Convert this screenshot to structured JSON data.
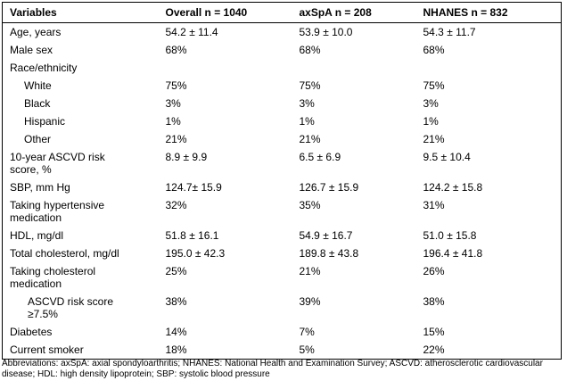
{
  "table": {
    "header": [
      "Variables",
      "Overall n = 1040",
      "axSpA n = 208",
      "NHANES n = 832"
    ],
    "rows": [
      [
        "Age, years",
        "54.2 ± 11.4",
        "53.9 ± 10.0",
        "54.3 ± 11.7"
      ],
      [
        "Male sex",
        "68%",
        "68%",
        "68%"
      ],
      [
        "Race/ethnicity"
      ],
      [
        "White",
        "75%",
        "75%",
        "75%"
      ],
      [
        "Black",
        "3%",
        "3%",
        "3%"
      ],
      [
        "Hispanic",
        "1%",
        "1%",
        "1%"
      ],
      [
        "Other",
        "21%",
        "21%",
        "21%"
      ],
      [
        "10-year ASCVD risk score, %",
        "8.9 ± 9.9",
        "6.5 ± 6.9",
        "9.5 ± 10.4"
      ],
      [
        "SBP, mm Hg",
        "124.7± 15.9",
        "126.7 ± 15.9",
        "124.2 ± 15.8"
      ],
      [
        "Taking hypertensive medication",
        "32%",
        "35%",
        "31%"
      ],
      [
        "HDL, mg/dl",
        "51.8 ± 16.1",
        "54.9 ± 16.7",
        "51.0 ± 15.8"
      ],
      [
        "Total cholesterol, mg/dl",
        "195.0 ± 42.3",
        "189.8 ± 43.8",
        "196.4 ± 41.8"
      ],
      [
        "Taking cholesterol medication",
        "25%",
        "21%",
        "26%"
      ],
      [
        "ASCVD risk score ≥7.5%",
        "38%",
        "39%",
        "38%"
      ],
      [
        "Diabetes",
        "14%",
        "7%",
        "15%"
      ],
      [
        "Current smoker",
        "18%",
        "5%",
        "22%"
      ]
    ]
  },
  "footnote": "Abbreviations: axSpA: axial spondyloarthritis; NHANES: National Health and Examination Survey; ASCVD: atherosclerotic cardiovascular disease; HDL: high density lipoprotein; SBP: systolic blood pressure"
}
